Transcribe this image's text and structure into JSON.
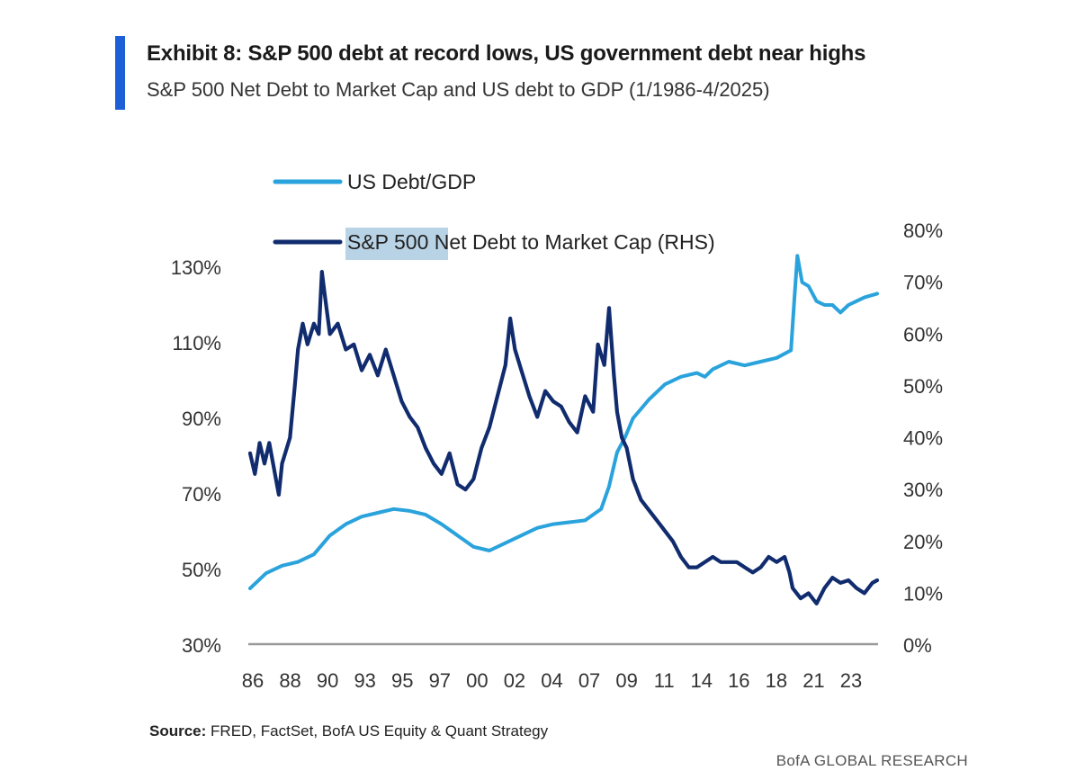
{
  "header": {
    "title": "Exhibit 8: S&P 500 debt at record lows, US government debt near highs",
    "subtitle": "S&P 500 Net Debt to Market Cap and US debt to GDP (1/1986-4/2025)"
  },
  "footer": {
    "source_label": "Source:",
    "source_text": "FRED, FactSet, BofA US Equity & Quant Strategy",
    "brand": "BofA GLOBAL RESEARCH"
  },
  "colors": {
    "accent": "#1d5fd6",
    "us_debt_gdp": "#2aa3dc",
    "sp500_net_debt": "#112c6e",
    "legend_highlight": "#b9d3e6",
    "axis": "#999999"
  },
  "chart_data": {
    "type": "line",
    "title": "S&P 500 Net Debt to Market Cap and US debt to GDP (1/1986-4/2025)",
    "x_tick_labels": [
      "86",
      "88",
      "90",
      "93",
      "95",
      "97",
      "00",
      "02",
      "04",
      "07",
      "09",
      "11",
      "14",
      "16",
      "18",
      "21",
      "23"
    ],
    "xlim": [
      1986.0,
      2025.3
    ],
    "left_axis": {
      "ylim": [
        30,
        135
      ],
      "ticks": [
        30,
        50,
        70,
        90,
        110,
        130
      ],
      "tick_labels": [
        "30%",
        "50%",
        "70%",
        "90%",
        "110%",
        "130%"
      ]
    },
    "right_axis": {
      "ylim": [
        0,
        80
      ],
      "ticks": [
        0,
        10,
        20,
        30,
        40,
        50,
        60,
        70,
        80
      ],
      "tick_labels": [
        "0%",
        "10%",
        "20%",
        "30%",
        "40%",
        "50%",
        "60%",
        "70%",
        "80%"
      ]
    },
    "legend": {
      "placement": "top-left",
      "highlighted_text": "S&P 500"
    },
    "series": [
      {
        "name": "US Debt/GDP",
        "axis": "left",
        "points": [
          [
            1986.0,
            45
          ],
          [
            1986.5,
            47
          ],
          [
            1987.0,
            49
          ],
          [
            1988.0,
            51
          ],
          [
            1989.0,
            52
          ],
          [
            1990.0,
            54
          ],
          [
            1991.0,
            59
          ],
          [
            1992.0,
            62
          ],
          [
            1993.0,
            64
          ],
          [
            1994.0,
            65
          ],
          [
            1995.0,
            66
          ],
          [
            1996.0,
            65.5
          ],
          [
            1997.0,
            64.5
          ],
          [
            1998.0,
            62
          ],
          [
            1999.0,
            59
          ],
          [
            2000.0,
            56
          ],
          [
            2001.0,
            55
          ],
          [
            2002.0,
            57
          ],
          [
            2003.0,
            59
          ],
          [
            2004.0,
            61
          ],
          [
            2005.0,
            62
          ],
          [
            2006.0,
            62.5
          ],
          [
            2007.0,
            63
          ],
          [
            2008.0,
            66
          ],
          [
            2008.5,
            72
          ],
          [
            2009.0,
            81
          ],
          [
            2009.5,
            85
          ],
          [
            2010.0,
            90
          ],
          [
            2011.0,
            95
          ],
          [
            2012.0,
            99
          ],
          [
            2013.0,
            101
          ],
          [
            2014.0,
            102
          ],
          [
            2014.5,
            101
          ],
          [
            2015.0,
            103
          ],
          [
            2016.0,
            105
          ],
          [
            2017.0,
            104
          ],
          [
            2018.0,
            105
          ],
          [
            2019.0,
            106
          ],
          [
            2019.9,
            108
          ],
          [
            2020.1,
            121
          ],
          [
            2020.3,
            133
          ],
          [
            2020.6,
            126
          ],
          [
            2021.0,
            125
          ],
          [
            2021.5,
            121
          ],
          [
            2022.0,
            120
          ],
          [
            2022.5,
            120
          ],
          [
            2023.0,
            118
          ],
          [
            2023.5,
            120
          ],
          [
            2024.0,
            121
          ],
          [
            2024.5,
            122
          ],
          [
            2025.3,
            123
          ]
        ]
      },
      {
        "name": "S&P 500 Net Debt to Market Cap (RHS)",
        "axis": "right",
        "points": [
          [
            1986.0,
            37
          ],
          [
            1986.3,
            33
          ],
          [
            1986.6,
            39
          ],
          [
            1986.9,
            35
          ],
          [
            1987.2,
            39
          ],
          [
            1987.5,
            34
          ],
          [
            1987.8,
            29
          ],
          [
            1988.0,
            35
          ],
          [
            1988.5,
            40
          ],
          [
            1988.8,
            50
          ],
          [
            1989.0,
            57
          ],
          [
            1989.3,
            62
          ],
          [
            1989.6,
            58
          ],
          [
            1990.0,
            62
          ],
          [
            1990.3,
            60
          ],
          [
            1990.5,
            72
          ],
          [
            1990.7,
            67
          ],
          [
            1991.0,
            60
          ],
          [
            1991.5,
            62
          ],
          [
            1992.0,
            57
          ],
          [
            1992.5,
            58
          ],
          [
            1993.0,
            53
          ],
          [
            1993.5,
            56
          ],
          [
            1994.0,
            52
          ],
          [
            1994.5,
            57
          ],
          [
            1995.0,
            52
          ],
          [
            1995.5,
            47
          ],
          [
            1996.0,
            44
          ],
          [
            1996.5,
            42
          ],
          [
            1997.0,
            38
          ],
          [
            1997.5,
            35
          ],
          [
            1998.0,
            33
          ],
          [
            1998.5,
            37
          ],
          [
            1999.0,
            31
          ],
          [
            1999.5,
            30
          ],
          [
            2000.0,
            32
          ],
          [
            2000.5,
            38
          ],
          [
            2001.0,
            42
          ],
          [
            2001.5,
            48
          ],
          [
            2002.0,
            54
          ],
          [
            2002.3,
            63
          ],
          [
            2002.6,
            57
          ],
          [
            2003.0,
            53
          ],
          [
            2003.5,
            48
          ],
          [
            2004.0,
            44
          ],
          [
            2004.5,
            49
          ],
          [
            2005.0,
            47
          ],
          [
            2005.5,
            46
          ],
          [
            2006.0,
            43
          ],
          [
            2006.5,
            41
          ],
          [
            2007.0,
            48
          ],
          [
            2007.5,
            45
          ],
          [
            2007.8,
            58
          ],
          [
            2008.2,
            54
          ],
          [
            2008.5,
            65
          ],
          [
            2008.8,
            52
          ],
          [
            2009.0,
            45
          ],
          [
            2009.3,
            40
          ],
          [
            2009.6,
            38
          ],
          [
            2010.0,
            32
          ],
          [
            2010.5,
            28
          ],
          [
            2011.0,
            26
          ],
          [
            2011.5,
            24
          ],
          [
            2012.0,
            22
          ],
          [
            2012.5,
            20
          ],
          [
            2013.0,
            17
          ],
          [
            2013.5,
            15
          ],
          [
            2014.0,
            15
          ],
          [
            2014.5,
            16
          ],
          [
            2015.0,
            17
          ],
          [
            2015.5,
            16
          ],
          [
            2016.0,
            16
          ],
          [
            2016.5,
            16
          ],
          [
            2017.0,
            15
          ],
          [
            2017.5,
            14
          ],
          [
            2018.0,
            15
          ],
          [
            2018.5,
            17
          ],
          [
            2019.0,
            16
          ],
          [
            2019.5,
            17
          ],
          [
            2019.8,
            14
          ],
          [
            2020.0,
            11
          ],
          [
            2020.5,
            9
          ],
          [
            2021.0,
            10
          ],
          [
            2021.5,
            8
          ],
          [
            2022.0,
            11
          ],
          [
            2022.5,
            13
          ],
          [
            2023.0,
            12
          ],
          [
            2023.5,
            12.5
          ],
          [
            2024.0,
            11
          ],
          [
            2024.5,
            10
          ],
          [
            2025.0,
            12
          ],
          [
            2025.3,
            12.5
          ]
        ]
      }
    ]
  }
}
